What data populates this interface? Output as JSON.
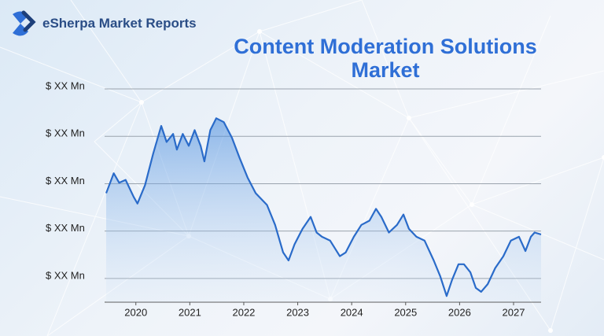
{
  "logo": "eSherpa Market Reports",
  "chart_data": {
    "type": "line",
    "title": "Content Moderation Solutions Market",
    "x": [
      2019.45,
      2019.59,
      2019.69,
      2019.81,
      2019.96,
      2020.03,
      2020.17,
      2020.32,
      2020.47,
      2020.57,
      2020.69,
      2020.76,
      2020.87,
      2020.98,
      2021.09,
      2021.2,
      2021.27,
      2021.38,
      2021.49,
      2021.63,
      2021.78,
      2021.92,
      2022.07,
      2022.22,
      2022.43,
      2022.58,
      2022.73,
      2022.83,
      2022.94,
      2023.09,
      2023.24,
      2023.35,
      2023.45,
      2023.6,
      2023.78,
      2023.89,
      2024.04,
      2024.18,
      2024.33,
      2024.45,
      2024.55,
      2024.69,
      2024.84,
      2024.96,
      2025.06,
      2025.2,
      2025.35,
      2025.52,
      2025.64,
      2025.76,
      2025.86,
      2025.98,
      2026.08,
      2026.2,
      2026.3,
      2026.4,
      2026.52,
      2026.66,
      2026.81,
      2026.95,
      2027.1,
      2027.22,
      2027.32,
      2027.39,
      2027.51
    ],
    "values": [
      2.8,
      3.22,
      3.02,
      3.08,
      2.72,
      2.58,
      2.97,
      3.63,
      4.22,
      3.88,
      4.05,
      3.72,
      4.05,
      3.8,
      4.13,
      3.8,
      3.47,
      4.13,
      4.38,
      4.3,
      3.97,
      3.55,
      3.13,
      2.8,
      2.55,
      2.13,
      1.55,
      1.38,
      1.72,
      2.05,
      2.3,
      1.97,
      1.88,
      1.8,
      1.47,
      1.55,
      1.88,
      2.13,
      2.22,
      2.47,
      2.3,
      1.97,
      2.13,
      2.35,
      2.05,
      1.88,
      1.8,
      1.38,
      1.05,
      0.63,
      0.97,
      1.3,
      1.3,
      1.13,
      0.8,
      0.72,
      0.88,
      1.22,
      1.47,
      1.8,
      1.88,
      1.58,
      1.88,
      1.97,
      1.93
    ],
    "color": "#2a6bc9",
    "xlim": [
      2019.45,
      2027.51
    ],
    "xticks": [
      2020,
      2021,
      2022,
      2023,
      2024,
      2025,
      2026,
      2027
    ],
    "ylim": [
      0.5,
      5
    ],
    "yticks": [
      {
        "value": 1,
        "label": "$ XX Mn"
      },
      {
        "value": 2,
        "label": "$ XX Mn"
      },
      {
        "value": 3,
        "label": "$ XX Mn"
      },
      {
        "value": 4,
        "label": "$ XX Mn"
      },
      {
        "value": 5,
        "label": "$ XX Mn"
      }
    ],
    "grid": true
  }
}
